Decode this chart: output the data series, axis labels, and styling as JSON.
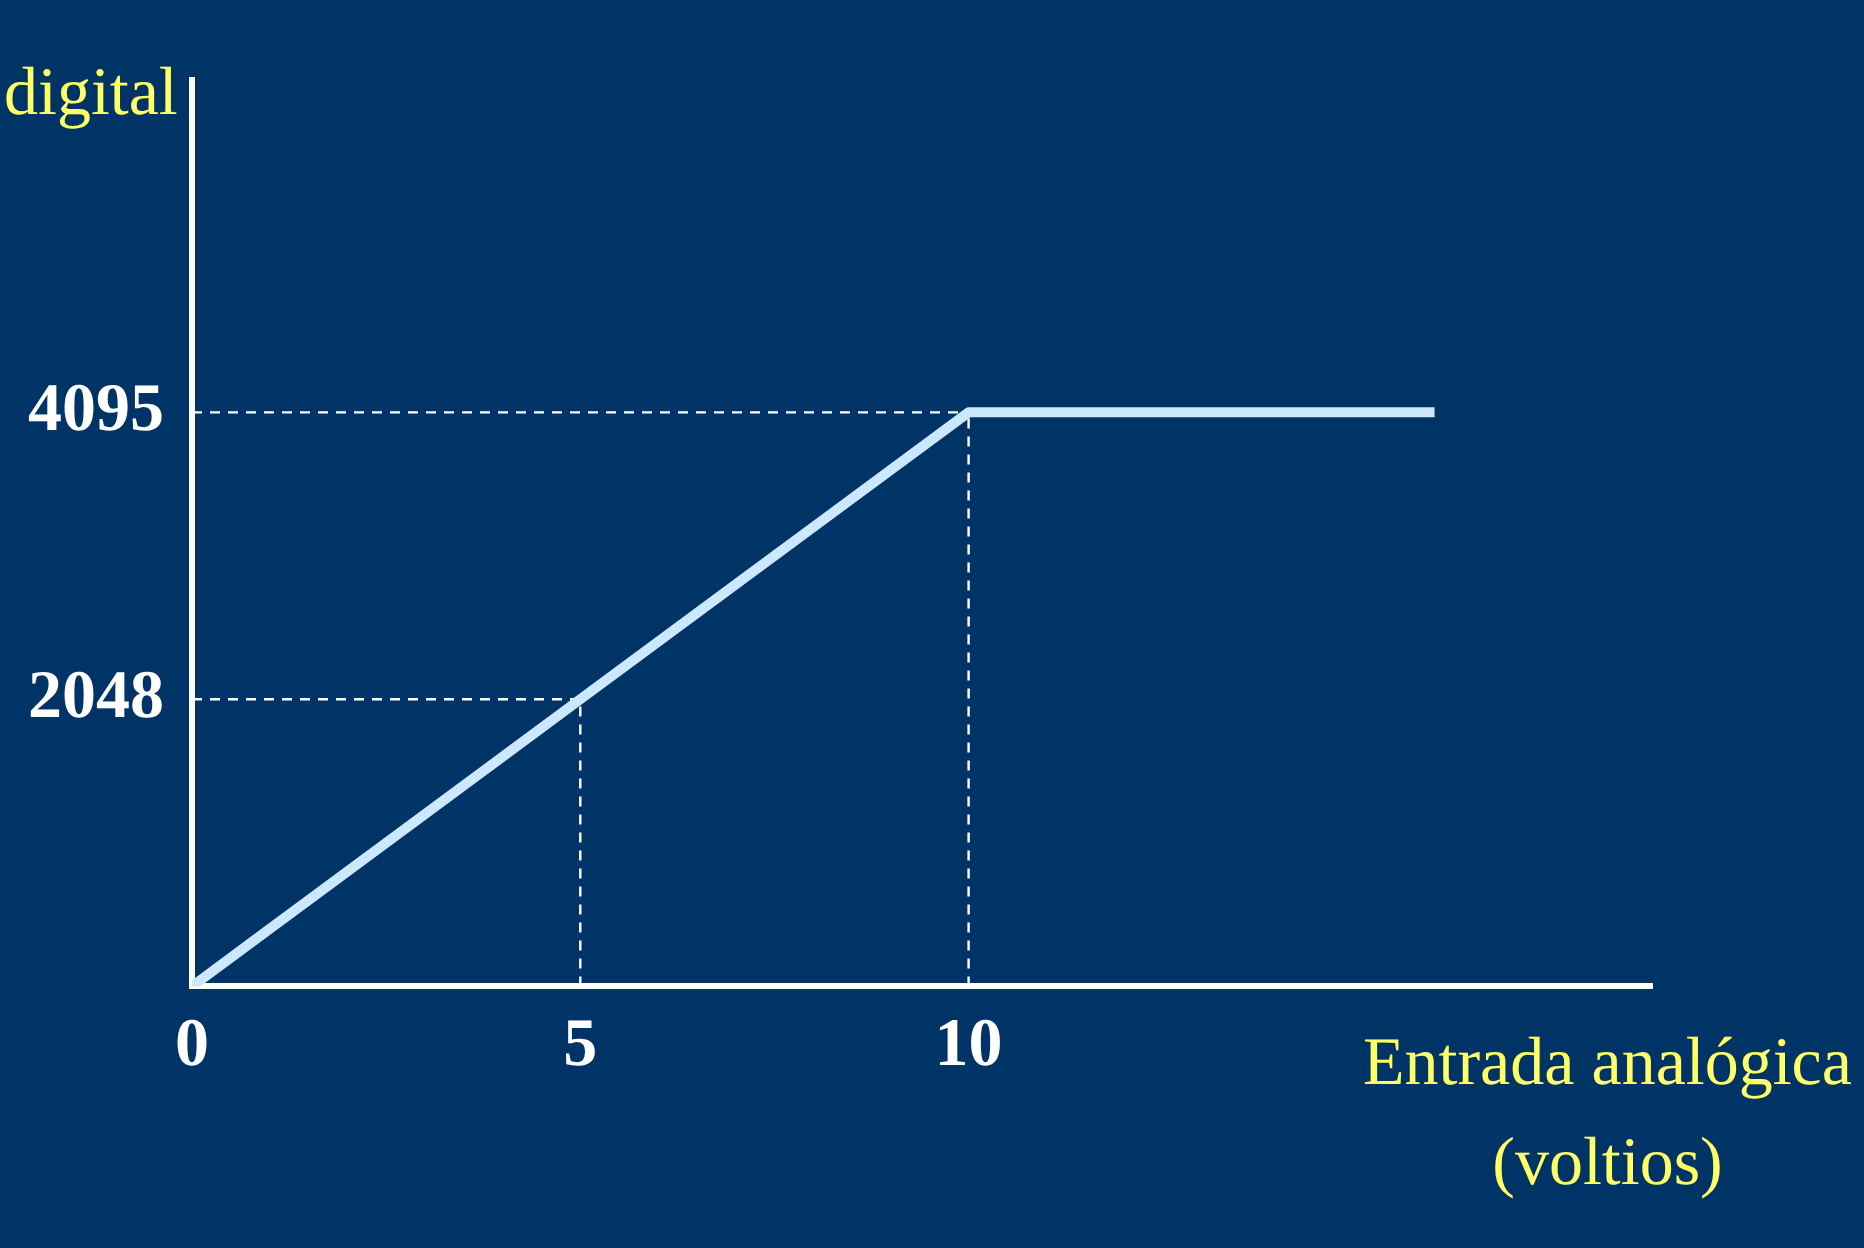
{
  "chart_data": {
    "type": "line",
    "xlabel": "Entrada analógica\n(voltios)",
    "ylabel": "digital",
    "x": [
      0,
      5,
      10,
      16
    ],
    "values": [
      0,
      2048,
      4095,
      4095
    ],
    "color": "#cce8ff",
    "xlim": [
      0,
      18.8
    ],
    "xticks": [
      0,
      5,
      10
    ],
    "ylim": [
      0,
      6466
    ],
    "yticks": [
      2048,
      4095
    ],
    "ref_lines": [
      {
        "axis": "y",
        "value": 4095,
        "color": "#ffffff",
        "line_style": "dashed"
      },
      {
        "axis": "y",
        "value": 2048,
        "color": "#ffffff",
        "line_style": "dashed"
      },
      {
        "axis": "x",
        "value": 10,
        "color": "#ffffff",
        "line_style": "dashed"
      },
      {
        "axis": "x",
        "value": 5,
        "color": "#ffffff",
        "line_style": "dashed"
      }
    ],
    "grid": false,
    "legend": false,
    "marker": "none",
    "line_style": "solid"
  }
}
